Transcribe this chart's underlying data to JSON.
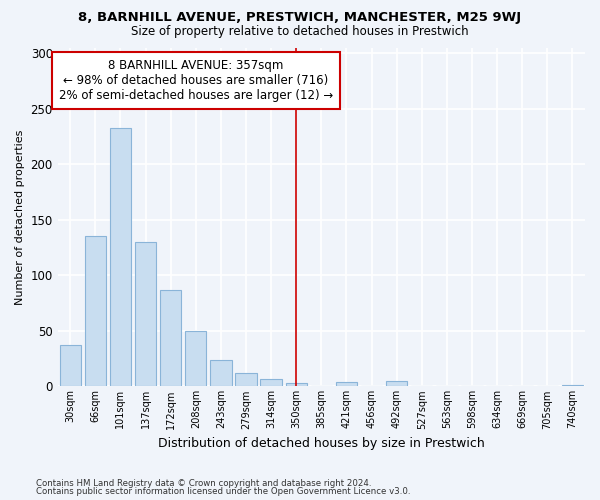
{
  "title1": "8, BARNHILL AVENUE, PRESTWICH, MANCHESTER, M25 9WJ",
  "title2": "Size of property relative to detached houses in Prestwich",
  "xlabel": "Distribution of detached houses by size in Prestwich",
  "ylabel": "Number of detached properties",
  "bar_color": "#c8ddf0",
  "bar_edge_color": "#8ab4d8",
  "bins": [
    "30sqm",
    "66sqm",
    "101sqm",
    "137sqm",
    "172sqm",
    "208sqm",
    "243sqm",
    "279sqm",
    "314sqm",
    "350sqm",
    "385sqm",
    "421sqm",
    "456sqm",
    "492sqm",
    "527sqm",
    "563sqm",
    "598sqm",
    "634sqm",
    "669sqm",
    "705sqm",
    "740sqm"
  ],
  "values": [
    37,
    135,
    233,
    130,
    87,
    50,
    24,
    12,
    7,
    3,
    0,
    4,
    0,
    5,
    0,
    0,
    0,
    0,
    0,
    0,
    1
  ],
  "vline_color": "#cc0000",
  "vline_pos": 9,
  "annotation_line1": "8 BARNHILL AVENUE: 357sqm",
  "annotation_line2": "← 98% of detached houses are smaller (716)",
  "annotation_line3": "2% of semi-detached houses are larger (12) →",
  "annotation_box_color": "#ffffff",
  "annotation_box_edge": "#cc0000",
  "ylim": [
    0,
    305
  ],
  "yticks": [
    0,
    50,
    100,
    150,
    200,
    250,
    300
  ],
  "footnote1": "Contains HM Land Registry data © Crown copyright and database right 2024.",
  "footnote2": "Contains public sector information licensed under the Open Government Licence v3.0.",
  "background_color": "#f0f4fa",
  "grid_color": "#ffffff"
}
